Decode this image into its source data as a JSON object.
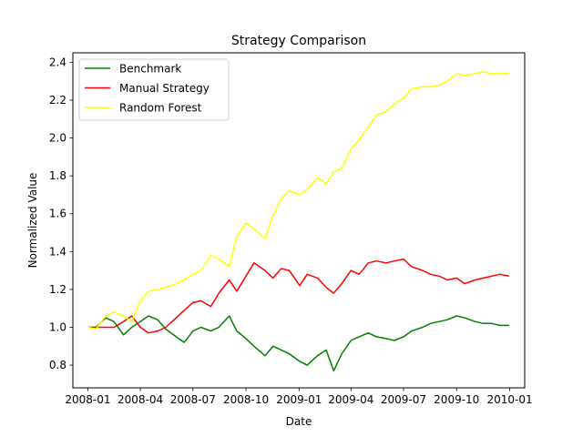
{
  "chart_data": {
    "type": "line",
    "title": "Strategy Comparison",
    "xlabel": "Date",
    "ylabel": "Normalized Value",
    "x_ticks": [
      "2008-01",
      "2008-04",
      "2008-07",
      "2008-10",
      "2009-01",
      "2009-04",
      "2009-07",
      "2009-10",
      "2010-01"
    ],
    "y_ticks": [
      "0.8",
      "1.0",
      "1.2",
      "1.4",
      "1.6",
      "1.8",
      "2.0",
      "2.2",
      "2.4"
    ],
    "xlim": [
      "2007-12-06",
      "2010-01-27"
    ],
    "ylim": [
      0.68,
      2.45
    ],
    "legend_position": "upper-left",
    "grid": false,
    "x": [
      "2008-01-02",
      "2008-01-15",
      "2008-02-01",
      "2008-02-15",
      "2008-03-03",
      "2008-03-17",
      "2008-04-01",
      "2008-04-15",
      "2008-05-01",
      "2008-05-15",
      "2008-06-02",
      "2008-06-16",
      "2008-07-01",
      "2008-07-15",
      "2008-08-01",
      "2008-08-15",
      "2008-09-02",
      "2008-09-15",
      "2008-10-01",
      "2008-10-15",
      "2008-11-03",
      "2008-11-17",
      "2008-12-01",
      "2008-12-15",
      "2009-01-02",
      "2009-01-15",
      "2009-02-02",
      "2009-02-17",
      "2009-03-02",
      "2009-03-16",
      "2009-04-01",
      "2009-04-15",
      "2009-05-01",
      "2009-05-15",
      "2009-06-01",
      "2009-06-15",
      "2009-07-01",
      "2009-07-15",
      "2009-08-03",
      "2009-08-17",
      "2009-09-01",
      "2009-09-15",
      "2009-10-01",
      "2009-10-15",
      "2009-11-02",
      "2009-11-16",
      "2009-12-01",
      "2009-12-15",
      "2009-12-31"
    ],
    "series": [
      {
        "name": "Benchmark",
        "color": "#008000",
        "values": [
          1.0,
          1.0,
          1.05,
          1.03,
          0.96,
          1.0,
          1.03,
          1.06,
          1.04,
          0.99,
          0.95,
          0.92,
          0.98,
          1.0,
          0.98,
          1.0,
          1.06,
          0.98,
          0.94,
          0.9,
          0.85,
          0.9,
          0.88,
          0.86,
          0.82,
          0.8,
          0.85,
          0.88,
          0.77,
          0.86,
          0.93,
          0.95,
          0.97,
          0.95,
          0.94,
          0.93,
          0.95,
          0.98,
          1.0,
          1.02,
          1.03,
          1.04,
          1.06,
          1.05,
          1.03,
          1.02,
          1.02,
          1.01,
          1.01
        ]
      },
      {
        "name": "Manual Strategy",
        "color": "#ff0000",
        "values": [
          1.0,
          1.0,
          1.0,
          1.0,
          1.03,
          1.06,
          1.0,
          0.97,
          0.98,
          1.0,
          1.05,
          1.09,
          1.13,
          1.14,
          1.11,
          1.18,
          1.25,
          1.19,
          1.27,
          1.34,
          1.3,
          1.26,
          1.31,
          1.3,
          1.22,
          1.28,
          1.26,
          1.21,
          1.18,
          1.23,
          1.3,
          1.28,
          1.34,
          1.35,
          1.34,
          1.35,
          1.36,
          1.32,
          1.3,
          1.28,
          1.27,
          1.25,
          1.26,
          1.23,
          1.25,
          1.26,
          1.27,
          1.28,
          1.27
        ]
      },
      {
        "name": "Random Forest",
        "color": "#ffff00",
        "values": [
          1.0,
          0.99,
          1.06,
          1.08,
          1.06,
          1.03,
          1.14,
          1.19,
          1.2,
          1.21,
          1.23,
          1.25,
          1.28,
          1.3,
          1.38,
          1.36,
          1.32,
          1.48,
          1.55,
          1.52,
          1.47,
          1.59,
          1.68,
          1.72,
          1.7,
          1.73,
          1.79,
          1.76,
          1.82,
          1.84,
          1.94,
          1.99,
          2.06,
          2.12,
          2.14,
          2.18,
          2.21,
          2.26,
          2.27,
          2.27,
          2.28,
          2.3,
          2.34,
          2.33,
          2.34,
          2.35,
          2.34,
          2.34,
          2.34
        ]
      }
    ]
  }
}
